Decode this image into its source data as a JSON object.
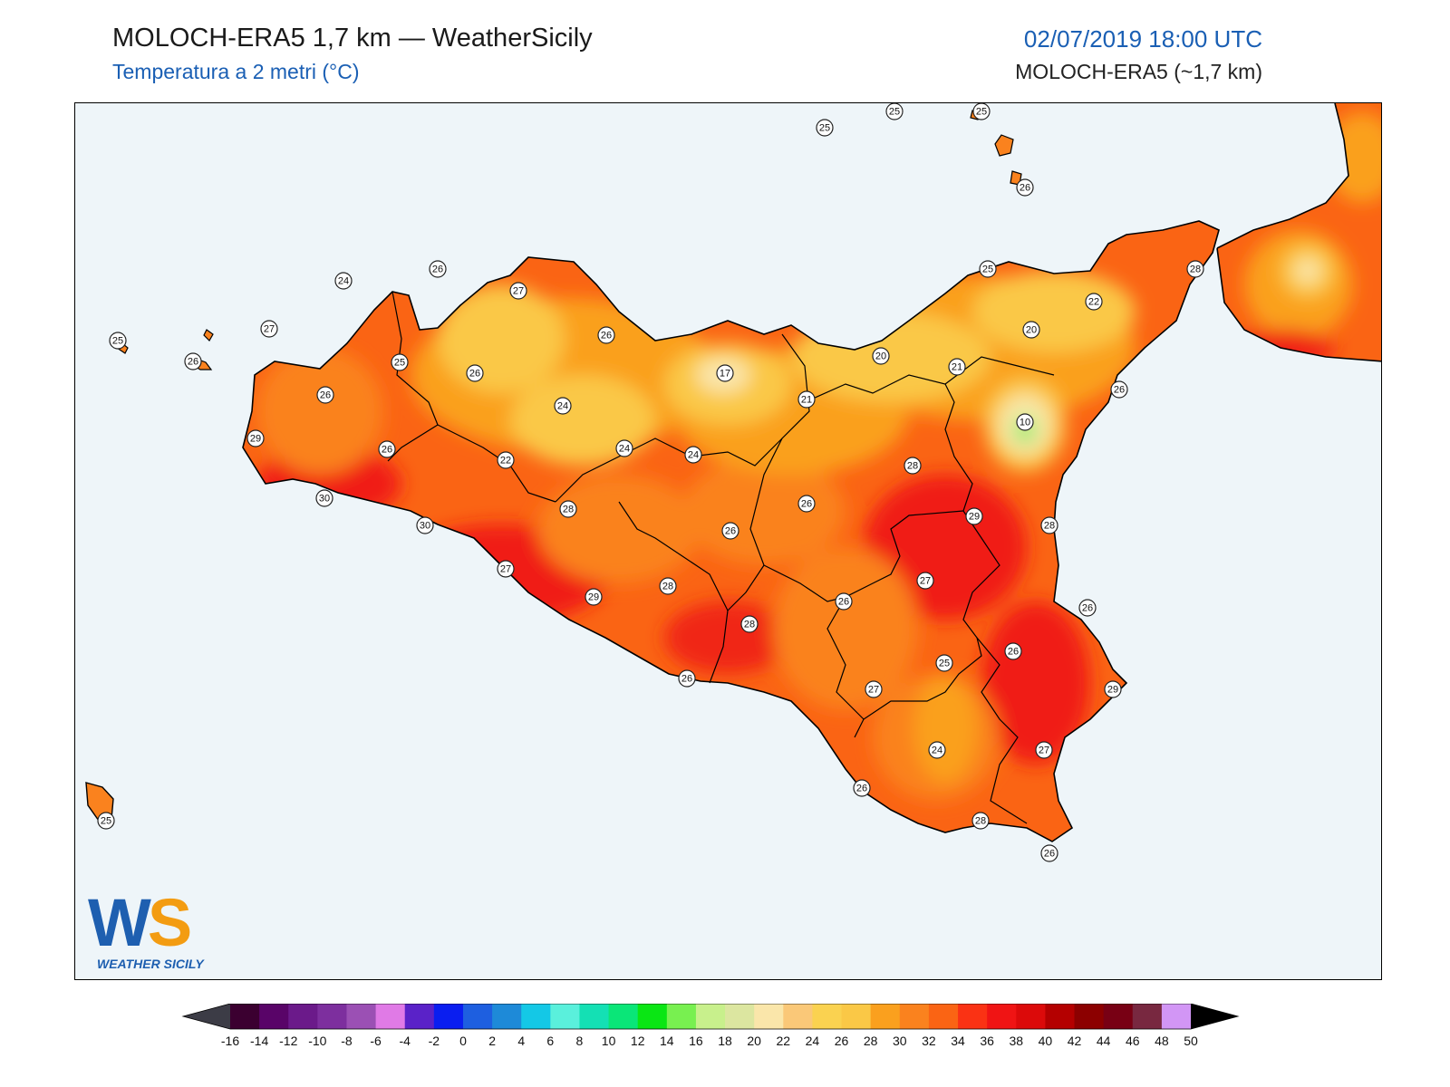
{
  "header": {
    "title": "MOLOCH-ERA5 1,7 km — WeatherSicily",
    "subtitle": "Temperatura a 2 metri (°C)",
    "datetime": "02/07/2019 18:00 UTC",
    "model": "MOLOCH-ERA5 (~1,7 km)"
  },
  "logo": {
    "letters": "WS",
    "text": "WEATHER SICILY"
  },
  "map_labels": [
    {
      "v": "25"
    },
    {
      "v": "25"
    },
    {
      "v": "25"
    },
    {
      "v": "26"
    },
    {
      "v": "25"
    },
    {
      "v": "24"
    },
    {
      "v": "26"
    },
    {
      "v": "27"
    },
    {
      "v": "26"
    },
    {
      "v": "27"
    },
    {
      "v": "25"
    },
    {
      "v": "26"
    },
    {
      "v": "26"
    },
    {
      "v": "29"
    },
    {
      "v": "26"
    },
    {
      "v": "30"
    },
    {
      "v": "30"
    },
    {
      "v": "22"
    },
    {
      "v": "24"
    },
    {
      "v": "26"
    },
    {
      "v": "17"
    },
    {
      "v": "24"
    },
    {
      "v": "24"
    },
    {
      "v": "28"
    },
    {
      "v": "25"
    },
    {
      "v": "28"
    },
    {
      "v": "22"
    },
    {
      "v": "20"
    },
    {
      "v": "20"
    },
    {
      "v": "21"
    },
    {
      "v": "21"
    },
    {
      "v": "26"
    },
    {
      "v": "10"
    },
    {
      "v": "28"
    },
    {
      "v": "26"
    },
    {
      "v": "26"
    },
    {
      "v": "29"
    },
    {
      "v": "28"
    },
    {
      "v": "27"
    },
    {
      "v": "29"
    },
    {
      "v": "28"
    },
    {
      "v": "28"
    },
    {
      "v": "26"
    },
    {
      "v": "27"
    },
    {
      "v": "26"
    },
    {
      "v": "26"
    },
    {
      "v": "25"
    },
    {
      "v": "26"
    },
    {
      "v": "27"
    },
    {
      "v": "29"
    },
    {
      "v": "24"
    },
    {
      "v": "27"
    },
    {
      "v": "26"
    },
    {
      "v": "28"
    },
    {
      "v": "26"
    },
    {
      "v": "25"
    }
  ],
  "colorbar": {
    "ticks": [
      "-16",
      "-14",
      "-12",
      "-10",
      "-8",
      "-6",
      "-4",
      "-2",
      "0",
      "2",
      "4",
      "6",
      "8",
      "10",
      "12",
      "14",
      "16",
      "18",
      "20",
      "22",
      "24",
      "26",
      "28",
      "30",
      "32",
      "34",
      "36",
      "38",
      "40",
      "42",
      "44",
      "46",
      "48",
      "50"
    ],
    "colors": [
      "#3b0030",
      "#590468",
      "#6b1a8a",
      "#7d2f9e",
      "#9b50b4",
      "#e07ae6",
      "#5a22c8",
      "#0a1ef0",
      "#1e5fe0",
      "#1e8ad8",
      "#14c8e6",
      "#5af0dc",
      "#14e0b4",
      "#0ae678",
      "#0ae614",
      "#78f050",
      "#c8f08c",
      "#dce6a0",
      "#fae6aa",
      "#fac878",
      "#fad250",
      "#fac846",
      "#faa01e",
      "#fa821e",
      "#fa6414",
      "#fa3214",
      "#f01414",
      "#dc0a0a",
      "#b40000",
      "#8c0000",
      "#780014",
      "#782840",
      "#d296f5",
      "#fa78c8",
      "#f01e8c",
      "#787878",
      "#3c3c3c"
    ],
    "under_color": "#3c3c46",
    "over_color": "#000000",
    "unit": "°C"
  },
  "legend_colors": {
    "sea": "#eef5f9",
    "t10": "#78dc50",
    "t16": "#fae6aa",
    "t20": "#fad250",
    "t22": "#fac846",
    "t24": "#faa01e",
    "t26": "#fa821e",
    "t28": "#fa5014",
    "t30": "#f01e14"
  }
}
